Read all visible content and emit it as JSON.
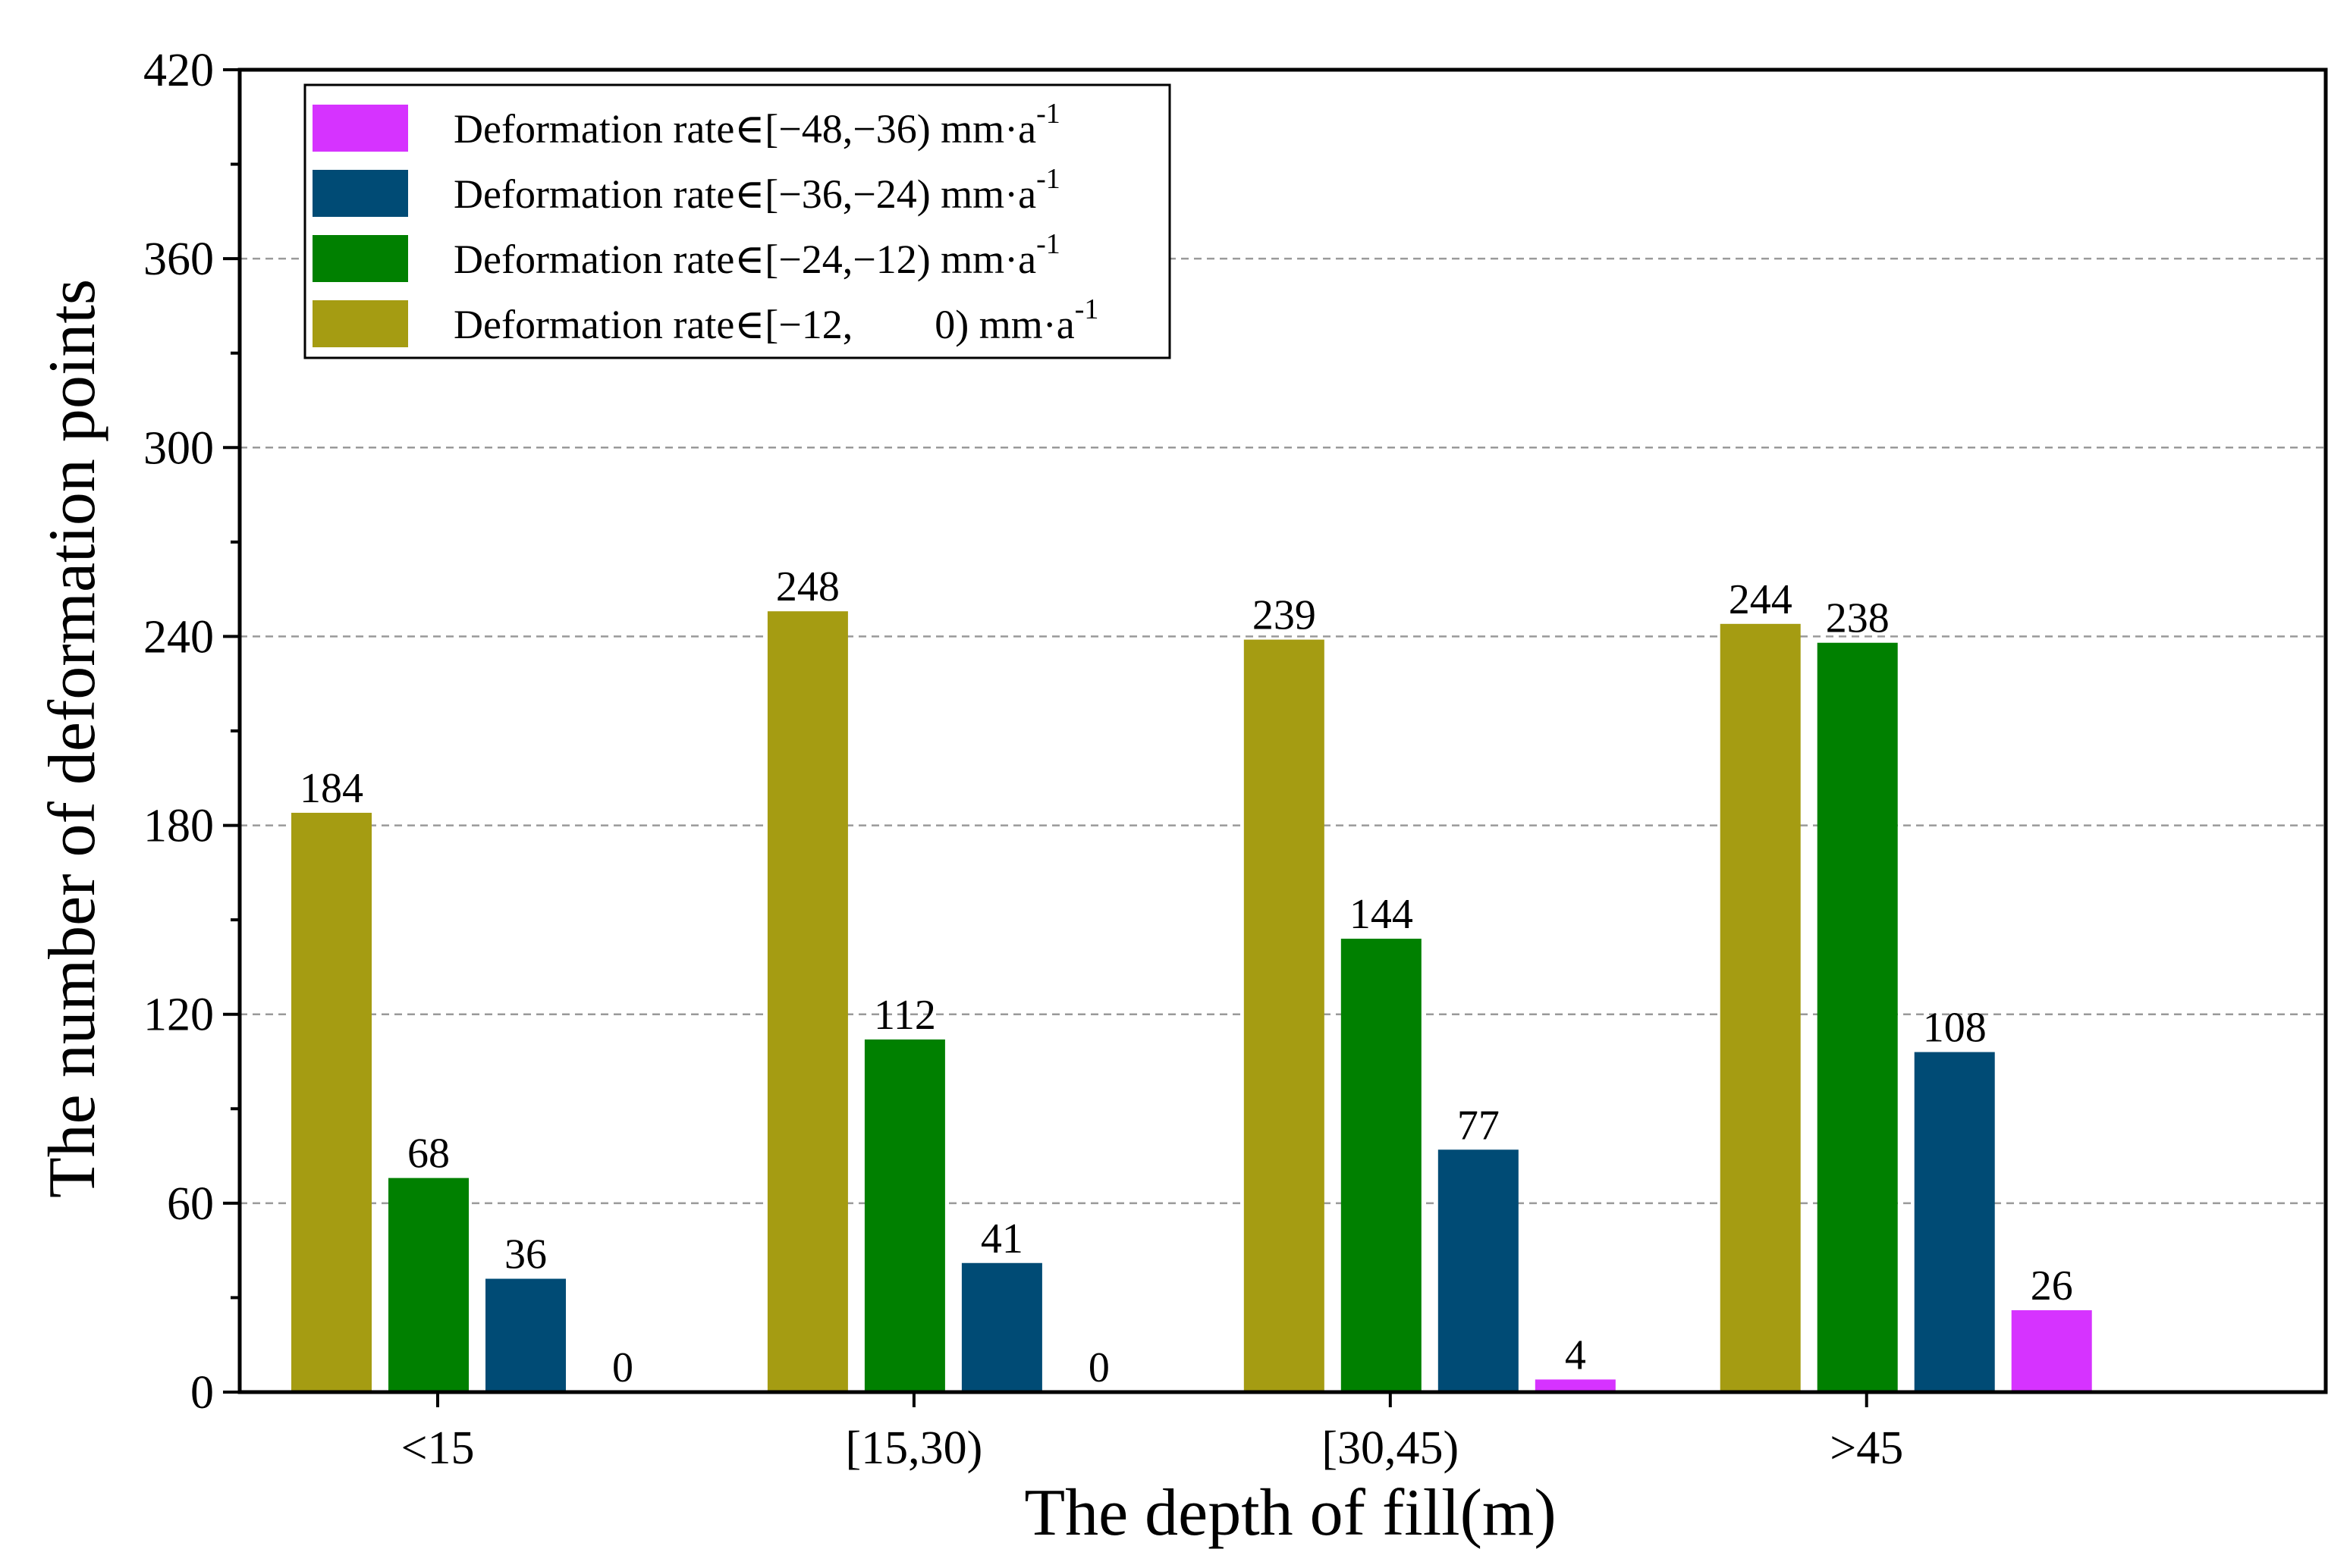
{
  "chart_data": {
    "type": "bar",
    "title": "",
    "xlabel": "The depth of fill(m)",
    "ylabel": "The number of deformation points",
    "ylim": [
      0,
      420
    ],
    "yticks": [
      0,
      60,
      120,
      180,
      240,
      300,
      360,
      420
    ],
    "grid": "horizontal dashed",
    "legend_position": "top-left",
    "categories": [
      "<15",
      "[15,30)",
      "[30,45)",
      ">45"
    ],
    "series": [
      {
        "name": "Deformation rate∈[−12, 0) mm·a-1",
        "legend": {
          "prefix": "Deformation rate∈[−12,  0) mm·a",
          "sup": "-1"
        },
        "color": "#a59c12",
        "values": [
          184,
          248,
          239,
          244
        ]
      },
      {
        "name": "Deformation rate∈[−24,−12) mm·a-1",
        "legend": {
          "prefix": "Deformation rate∈[−24,−12) mm·a",
          "sup": "-1"
        },
        "color": "#008000",
        "values": [
          68,
          112,
          144,
          238
        ]
      },
      {
        "name": "Deformation rate∈[−36,−24) mm·a-1",
        "legend": {
          "prefix": "Deformation rate∈[−36,−24) mm·a",
          "sup": "-1"
        },
        "color": "#004b75",
        "values": [
          36,
          41,
          77,
          108
        ]
      },
      {
        "name": "Deformation rate∈[−48,−36) mm·a-1",
        "legend": {
          "prefix": "Deformation rate∈[−48,−36) mm·a",
          "sup": "-1"
        },
        "color": "#d633ff",
        "values": [
          0,
          0,
          4,
          26
        ]
      }
    ],
    "legend_order": [
      3,
      2,
      1,
      0
    ]
  }
}
